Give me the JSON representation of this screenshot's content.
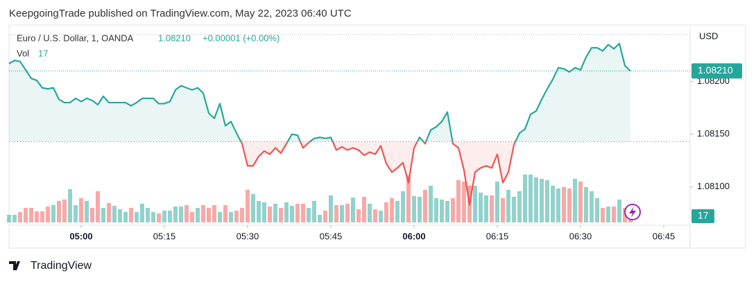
{
  "header": "KeepgoingTrade published on TradingView.com, May 22, 2023 06:40 UTC",
  "footer": "TradingView",
  "chart_data": {
    "type": "line",
    "title": "Euro / U.S. Dollar, 1, OANDA",
    "last_price": "1.08210",
    "change": "+0.00001 (+0.00%)",
    "volume_title": "Vol",
    "last_volume": "17",
    "y_unit": "USD",
    "baseline": 1.08143,
    "colors": {
      "up": "#26a69a",
      "down": "#ef5350"
    },
    "ylim": [
      1.08067,
      1.08251
    ],
    "yticks": [
      {
        "value": 1.081,
        "label": "1.08100"
      },
      {
        "value": 1.0815,
        "label": "1.08150"
      },
      {
        "value": 1.082,
        "label": "1.08200"
      }
    ],
    "xticks": [
      "05:00",
      "05:15",
      "05:30",
      "05:45",
      "06:00",
      "06:15",
      "06:30",
      "06:45"
    ],
    "x": [
      "04:47",
      "04:48",
      "04:49",
      "04:50",
      "04:51",
      "04:52",
      "04:53",
      "04:54",
      "04:55",
      "04:56",
      "04:57",
      "04:58",
      "04:59",
      "05:00",
      "05:01",
      "05:02",
      "05:03",
      "05:04",
      "05:05",
      "05:06",
      "05:07",
      "05:08",
      "05:09",
      "05:10",
      "05:11",
      "05:12",
      "05:13",
      "05:14",
      "05:15",
      "05:16",
      "05:17",
      "05:18",
      "05:19",
      "05:20",
      "05:21",
      "05:22",
      "05:23",
      "05:24",
      "05:25",
      "05:26",
      "05:27",
      "05:28",
      "05:29",
      "05:30",
      "05:31",
      "05:32",
      "05:33",
      "05:34",
      "05:35",
      "05:36",
      "05:37",
      "05:38",
      "05:39",
      "05:40",
      "05:41",
      "05:42",
      "05:43",
      "05:44",
      "05:45",
      "05:46",
      "05:47",
      "05:48",
      "05:49",
      "05:50",
      "05:51",
      "05:52",
      "05:53",
      "05:54",
      "05:55",
      "05:56",
      "05:57",
      "05:58",
      "05:59",
      "06:00",
      "06:01",
      "06:02",
      "06:03",
      "06:04",
      "06:05",
      "06:06",
      "06:07",
      "06:08",
      "06:09",
      "06:10",
      "06:11",
      "06:12",
      "06:13",
      "06:14",
      "06:15",
      "06:16",
      "06:17",
      "06:18",
      "06:19",
      "06:20",
      "06:21",
      "06:22",
      "06:23",
      "06:24",
      "06:25",
      "06:26",
      "06:27",
      "06:28",
      "06:29",
      "06:30",
      "06:31",
      "06:32",
      "06:33",
      "06:34",
      "06:35",
      "06:36",
      "06:37",
      "06:38",
      "06:39"
    ],
    "values": [
      1.08217,
      1.0822,
      1.08219,
      1.08211,
      1.08203,
      1.08201,
      1.08194,
      1.08193,
      1.08194,
      1.08183,
      1.0818,
      1.0818,
      1.08184,
      1.08181,
      1.08184,
      1.08182,
      1.08178,
      1.08186,
      1.0818,
      1.0818,
      1.0818,
      1.0818,
      1.08177,
      1.0818,
      1.08184,
      1.08184,
      1.08184,
      1.08179,
      1.08179,
      1.08181,
      1.08192,
      1.08196,
      1.08194,
      1.08192,
      1.08194,
      1.08189,
      1.0817,
      1.08165,
      1.08179,
      1.08158,
      1.08162,
      1.08151,
      1.08141,
      1.0812,
      1.0812,
      1.08129,
      1.08134,
      1.08131,
      1.08137,
      1.08132,
      1.08141,
      1.0815,
      1.08149,
      1.08137,
      1.08142,
      1.08146,
      1.08147,
      1.08146,
      1.08147,
      1.08135,
      1.08138,
      1.08135,
      1.08137,
      1.08135,
      1.0813,
      1.08133,
      1.08131,
      1.08139,
      1.08122,
      1.08114,
      1.08118,
      1.08123,
      1.08104,
      1.08137,
      1.08147,
      1.08141,
      1.08154,
      1.08157,
      1.08162,
      1.08171,
      1.08141,
      1.08137,
      1.08116,
      1.08083,
      1.08114,
      1.08118,
      1.0812,
      1.08118,
      1.08131,
      1.08104,
      1.08114,
      1.0814,
      1.08151,
      1.08155,
      1.08169,
      1.08172,
      1.08183,
      1.08193,
      1.08202,
      1.08213,
      1.08212,
      1.08209,
      1.08213,
      1.08211,
      1.08223,
      1.08232,
      1.08232,
      1.08229,
      1.08235,
      1.08231,
      1.08236,
      1.08215,
      1.0821
    ],
    "volume": [
      11,
      11,
      15,
      21,
      21,
      16,
      16,
      23,
      25,
      31,
      33,
      48,
      25,
      35,
      31,
      21,
      45,
      21,
      28,
      24,
      19,
      15,
      21,
      15,
      27,
      21,
      15,
      13,
      17,
      17,
      23,
      23,
      25,
      15,
      21,
      25,
      21,
      25,
      15,
      25,
      15,
      17,
      21,
      47,
      41,
      31,
      29,
      23,
      27,
      21,
      29,
      24,
      27,
      27,
      21,
      31,
      11,
      17,
      39,
      25,
      25,
      27,
      36,
      19,
      37,
      27,
      19,
      17,
      29,
      35,
      31,
      45,
      68,
      38,
      37,
      47,
      53,
      35,
      33,
      31,
      35,
      61,
      59,
      53,
      53,
      43,
      39,
      39,
      59,
      35,
      47,
      37,
      45,
      69,
      69,
      65,
      63,
      61,
      53,
      49,
      51,
      49,
      63,
      59,
      51,
      45,
      35,
      21,
      23,
      23,
      33,
      21,
      17
    ]
  }
}
